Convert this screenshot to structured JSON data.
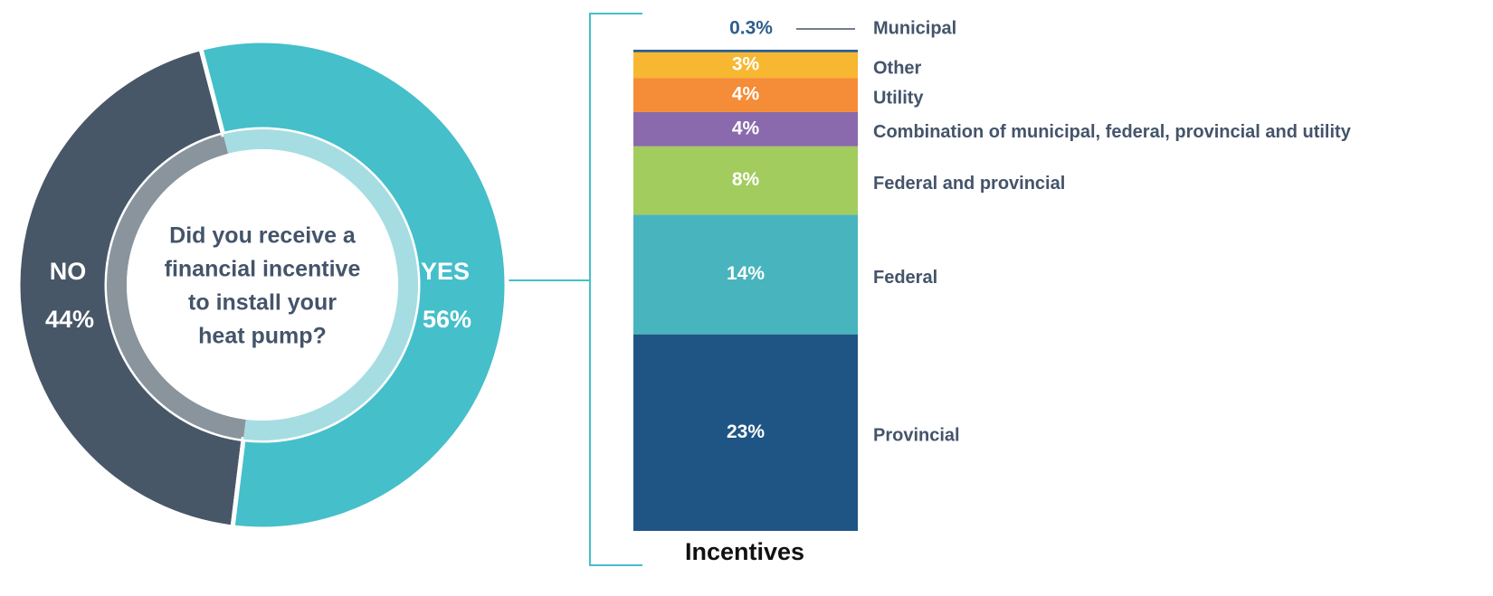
{
  "chart_data": [
    {
      "type": "donut",
      "center_text": [
        "Did you receive a",
        "financial incentive",
        "to install your",
        "heat pump?"
      ],
      "categories": [
        "NO",
        "YES"
      ],
      "values": [
        44,
        56
      ],
      "value_labels": [
        "44%",
        "56%"
      ],
      "colors": [
        "#475768",
        "#45bfca"
      ],
      "ring_colors": [
        "#8a949c",
        "#a6dde3"
      ]
    },
    {
      "type": "stacked-bar",
      "title": "Incentives",
      "series": [
        {
          "name": "Provincial",
          "color": "#1f5585",
          "values": [
            23
          ],
          "value_labels": [
            "23%"
          ]
        },
        {
          "name": "Federal",
          "color": "#48b4bd",
          "values": [
            14
          ],
          "value_labels": [
            "14%"
          ]
        },
        {
          "name": "Federal and provincial",
          "color": "#a2cc5e",
          "values": [
            8
          ],
          "value_labels": [
            "8%"
          ]
        },
        {
          "name": "Combination of municipal, federal, provincial and utility",
          "color": "#8a6aac",
          "values": [
            4
          ],
          "value_labels": [
            "4%"
          ]
        },
        {
          "name": "Utility",
          "color": "#f58c37",
          "values": [
            4
          ],
          "value_labels": [
            "4%"
          ]
        },
        {
          "name": "Other",
          "color": "#f7b731",
          "values": [
            3
          ],
          "value_labels": [
            "3%"
          ]
        },
        {
          "name": "Municipal",
          "color": "#2d5f8a",
          "values": [
            0.3
          ],
          "value_labels": [
            "0.3%"
          ]
        }
      ]
    }
  ]
}
